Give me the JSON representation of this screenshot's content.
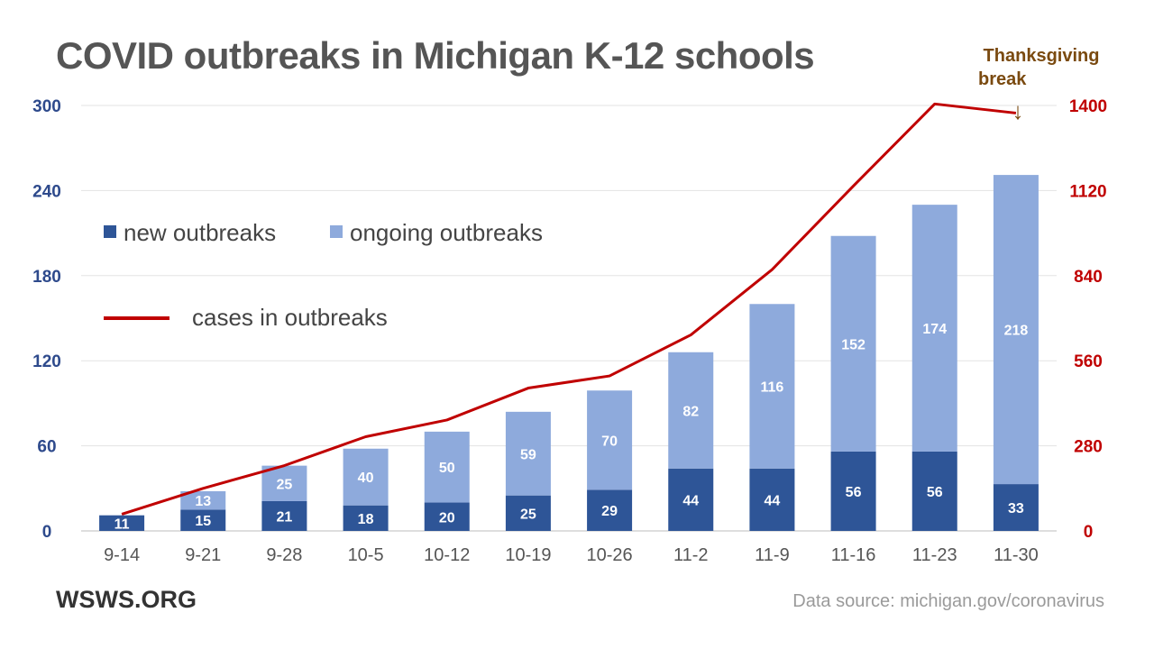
{
  "title": "COVID outbreaks in Michigan K-12 schools",
  "brand": "WSWS.ORG",
  "source": "Data source: michigan.gov/coronavirus",
  "annotation": {
    "line1": "Thanksgiving",
    "line2": "break",
    "arrow": "↓"
  },
  "colors": {
    "new": "#2e5597",
    "ongoing": "#8eaadc",
    "cases": "#c00000",
    "left_axis": "#2e4a8c",
    "right_axis": "#c00000",
    "annotation": "#7a4a10",
    "grid": "#e3e3e3"
  },
  "chart_data": {
    "type": "bar",
    "stacked": true,
    "categories": [
      "9-14",
      "9-21",
      "9-28",
      "10-5",
      "10-12",
      "10-19",
      "10-26",
      "11-2",
      "11-9",
      "11-16",
      "11-23",
      "11-30"
    ],
    "series": [
      {
        "name": "new outbreaks",
        "values": [
          11,
          15,
          21,
          18,
          20,
          25,
          29,
          44,
          44,
          56,
          56,
          33
        ]
      },
      {
        "name": "ongoing outbreaks",
        "values": [
          0,
          13,
          25,
          40,
          50,
          59,
          70,
          82,
          116,
          152,
          174,
          218
        ]
      },
      {
        "name": "cases in outbreaks",
        "type": "line",
        "axis": "right",
        "values": [
          55,
          140,
          215,
          310,
          365,
          470,
          510,
          645,
          860,
          1135,
          1405,
          1375
        ]
      }
    ],
    "ylim": [
      0,
      300
    ],
    "y_ticks": [
      0,
      60,
      120,
      180,
      240,
      300
    ],
    "y2lim": [
      0,
      1400
    ],
    "y2_ticks": [
      0,
      280,
      560,
      840,
      1120,
      1400
    ],
    "grid": true,
    "legend": {
      "position": "top-left",
      "entries": [
        "new outbreaks",
        "ongoing outbreaks",
        "cases in outbreaks"
      ]
    }
  }
}
